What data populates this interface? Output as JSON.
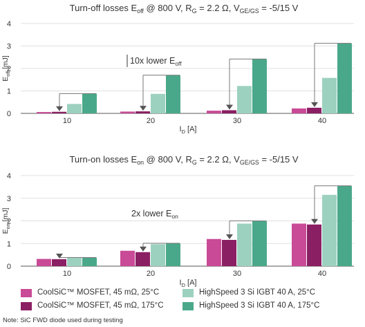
{
  "chart_data": [
    {
      "type": "bar",
      "title_parts": {
        "lead": "Turn-off losses E",
        "lead_sub": "off",
        "mid": " @ 800 V, R",
        "mid_sub": "G",
        "mid2": " = 2.2 Ω, V",
        "mid2_sub": "GE/GS",
        "tail": " = -5/15 V"
      },
      "ylabel": {
        "main": "E",
        "sub": "off",
        "unit": " [mJ]"
      },
      "xlabel": {
        "main": "I",
        "sub": "D",
        "unit": " [A]"
      },
      "categories": [
        "10",
        "20",
        "30",
        "40"
      ],
      "ylim": [
        0,
        4
      ],
      "yticks": [
        "0",
        "1",
        "2",
        "3",
        "4"
      ],
      "series": [
        {
          "name": "CoolSiC™ MOSFET, 45 mΩ, 25°C",
          "values": [
            0.06,
            0.08,
            0.12,
            0.22
          ]
        },
        {
          "name": "CoolSiC™ MOSFET, 45 mΩ, 175°C",
          "values": [
            0.07,
            0.09,
            0.14,
            0.25
          ]
        },
        {
          "name": "HighSpeed 3 Si IGBT 40 A, 25°C",
          "values": [
            0.42,
            0.87,
            1.22,
            1.58
          ]
        },
        {
          "name": "HighSpeed 3 Si IGBT 40 A, 175°C",
          "values": [
            0.88,
            1.7,
            2.42,
            3.12
          ]
        }
      ],
      "annotation": {
        "main": "10x lower E",
        "sub": "off"
      }
    },
    {
      "type": "bar",
      "title_parts": {
        "lead": "Turn-on losses E",
        "lead_sub": "on",
        "mid": " @ 800 V, R",
        "mid_sub": "G",
        "mid2": " = 2.2 Ω, V",
        "mid2_sub": "GE/GS",
        "tail": " = -5/15 V"
      },
      "ylabel": {
        "main": "E",
        "sub": "on",
        "unit": " [mJ]"
      },
      "xlabel": {
        "main": "I",
        "sub": "D",
        "unit": " [A]"
      },
      "categories": [
        "10",
        "20",
        "30",
        "40"
      ],
      "ylim": [
        0,
        4
      ],
      "yticks": [
        "0",
        "1",
        "2",
        "3",
        "4"
      ],
      "series": [
        {
          "name": "CoolSiC™ MOSFET, 45 mΩ, 25°C",
          "values": [
            0.32,
            0.68,
            1.2,
            1.88
          ]
        },
        {
          "name": "CoolSiC™ MOSFET, 45 mΩ, 175°C",
          "values": [
            0.31,
            0.62,
            1.16,
            1.84
          ]
        },
        {
          "name": "HighSpeed 3 Si IGBT 40 A, 25°C",
          "values": [
            0.38,
            0.97,
            1.88,
            3.15
          ]
        },
        {
          "name": "HighSpeed 3 Si IGBT 40 A, 175°C",
          "values": [
            0.38,
            1.01,
            2.0,
            3.55
          ]
        }
      ],
      "annotation": {
        "main": "2x lower E",
        "sub": "on"
      }
    }
  ],
  "colors": [
    "#c94a96",
    "#8a1f63",
    "#9dd1bf",
    "#4aa88a"
  ],
  "legend": [
    {
      "label": "CoolSiC™ MOSFET, 45 mΩ, 25°C",
      "color": "#c94a96"
    },
    {
      "label": "HighSpeed 3 Si IGBT 40 A, 25°C",
      "color": "#9dd1bf"
    },
    {
      "label": "CoolSiC™ MOSFET, 45 mΩ, 175°C",
      "color": "#8a1f63"
    },
    {
      "label": "HighSpeed 3 Si IGBT 40 A, 175°C",
      "color": "#4aa88a"
    }
  ],
  "note": "Note: SiC FWD diode used during testing"
}
